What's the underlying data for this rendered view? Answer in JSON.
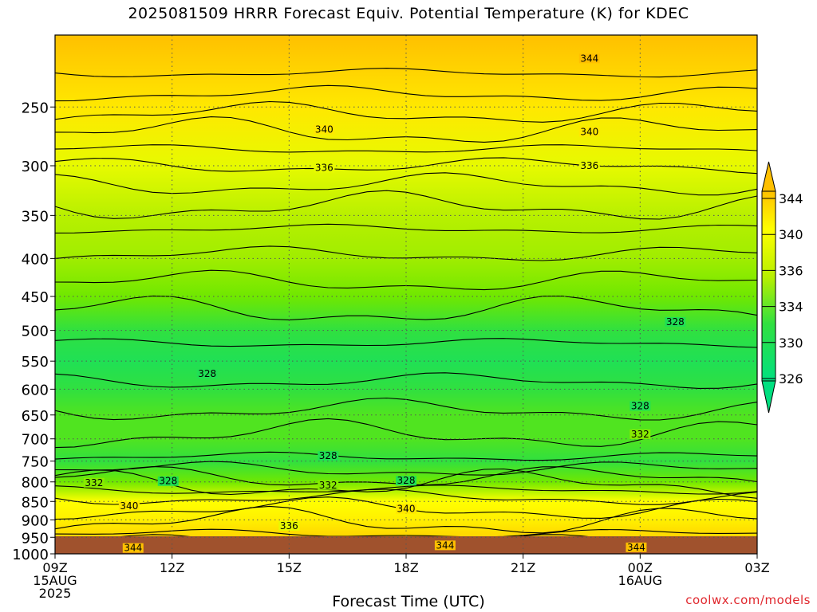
{
  "title": "2025081509 HRRR Forecast Equiv. Potential Temperature (K) for KDEC",
  "xlabel": "Forecast Time (UTC)",
  "credit": "coolwx.com/models",
  "colors": {
    "ground": "#a0522d",
    "scale": [
      "#00e080",
      "#30e040",
      "#70e800",
      "#b8f000",
      "#ffff00",
      "#ffe000",
      "#ffc000"
    ]
  },
  "chart_data": {
    "type": "heatmap",
    "title": "2025081509 HRRR Forecast Equiv. Potential Temperature (K) for KDEC",
    "xlabel": "Forecast Time (UTC)",
    "ylabel": "",
    "x_ticks": [
      {
        "h": 0,
        "lines": [
          "09Z",
          "15AUG",
          "2025"
        ]
      },
      {
        "h": 3,
        "lines": [
          "12Z"
        ]
      },
      {
        "h": 6,
        "lines": [
          "15Z"
        ]
      },
      {
        "h": 9,
        "lines": [
          "18Z"
        ]
      },
      {
        "h": 12,
        "lines": [
          "21Z"
        ]
      },
      {
        "h": 15,
        "lines": [
          "00Z",
          "16AUG"
        ]
      },
      {
        "h": 18,
        "lines": [
          "03Z"
        ]
      }
    ],
    "xlim": [
      0,
      18
    ],
    "y_ticks": [
      250,
      300,
      350,
      400,
      450,
      500,
      550,
      600,
      650,
      700,
      750,
      800,
      850,
      900,
      950,
      1000
    ],
    "ylim_hpa": [
      1000,
      200
    ],
    "y_scale": "log-pressure",
    "grid": true,
    "colorbar": {
      "labels": [
        344,
        340,
        336,
        334,
        330,
        326
      ],
      "extend": "both"
    },
    "theta_e_profile": [
      {
        "p": 1000,
        "k": 344
      },
      {
        "p": 950,
        "k": 342
      },
      {
        "p": 900,
        "k": 339
      },
      {
        "p": 850,
        "k": 337
      },
      {
        "p": 800,
        "k": 331
      },
      {
        "p": 750,
        "k": 329
      },
      {
        "p": 700,
        "k": 330
      },
      {
        "p": 650,
        "k": 330
      },
      {
        "p": 600,
        "k": 329
      },
      {
        "p": 550,
        "k": 328
      },
      {
        "p": 500,
        "k": 329
      },
      {
        "p": 450,
        "k": 331
      },
      {
        "p": 400,
        "k": 333
      },
      {
        "p": 350,
        "k": 334
      },
      {
        "p": 300,
        "k": 336
      },
      {
        "p": 250,
        "k": 340
      },
      {
        "p": 200,
        "k": 344
      }
    ],
    "contour_labels": [
      {
        "v": "344",
        "h": 13.7,
        "p": 215
      },
      {
        "v": "340",
        "h": 6.9,
        "p": 268
      },
      {
        "v": "340",
        "h": 13.7,
        "p": 270
      },
      {
        "v": "336",
        "h": 6.9,
        "p": 302
      },
      {
        "v": "336",
        "h": 13.7,
        "p": 300
      },
      {
        "v": "328",
        "h": 15.9,
        "p": 487
      },
      {
        "v": "328",
        "h": 3.9,
        "p": 572
      },
      {
        "v": "328",
        "h": 15.0,
        "p": 632
      },
      {
        "v": "332",
        "h": 15.0,
        "p": 690
      },
      {
        "v": "328",
        "h": 7.0,
        "p": 738
      },
      {
        "v": "332",
        "h": 1.0,
        "p": 802
      },
      {
        "v": "328",
        "h": 2.9,
        "p": 798
      },
      {
        "v": "332",
        "h": 7.0,
        "p": 808
      },
      {
        "v": "328",
        "h": 9.0,
        "p": 797
      },
      {
        "v": "340",
        "h": 1.9,
        "p": 862
      },
      {
        "v": "340",
        "h": 9.0,
        "p": 870
      },
      {
        "v": "336",
        "h": 6.0,
        "p": 917
      },
      {
        "v": "344",
        "h": 10.0,
        "p": 974
      },
      {
        "v": "344",
        "h": 2.0,
        "p": 982
      },
      {
        "v": "344",
        "h": 14.9,
        "p": 980
      }
    ]
  }
}
